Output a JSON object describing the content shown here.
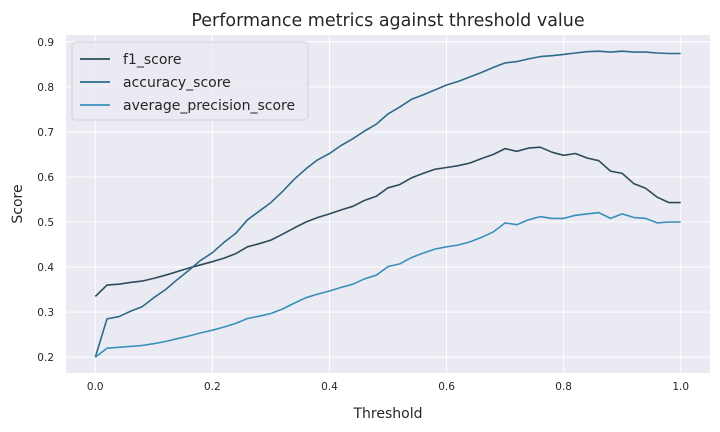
{
  "chart_data": {
    "type": "line",
    "title": "Performance metrics against threshold value",
    "xlabel": "Threshold",
    "ylabel": "Score",
    "xlim": [
      -0.05,
      1.05
    ],
    "ylim": [
      0.165,
      0.915
    ],
    "xticks": [
      "0.0",
      "0.2",
      "0.4",
      "0.6",
      "0.8",
      "1.0"
    ],
    "yticks": [
      "0.2",
      "0.3",
      "0.4",
      "0.5",
      "0.6",
      "0.7",
      "0.8",
      "0.9"
    ],
    "grid": true,
    "legend_position": "top-left",
    "colors": {
      "background": "#eaeaf2",
      "grid": "#ffffff",
      "f1_score": "#2f4b5a",
      "accuracy_score": "#2e6b88",
      "average_precision_score": "#3a8fbb"
    },
    "x": [
      0.0,
      0.02,
      0.04,
      0.06,
      0.08,
      0.1,
      0.12,
      0.14,
      0.16,
      0.18,
      0.2,
      0.22,
      0.24,
      0.26,
      0.28,
      0.3,
      0.32,
      0.34,
      0.36,
      0.38,
      0.4,
      0.42,
      0.44,
      0.46,
      0.48,
      0.5,
      0.52,
      0.54,
      0.56,
      0.58,
      0.6,
      0.62,
      0.64,
      0.66,
      0.68,
      0.7,
      0.72,
      0.74,
      0.76,
      0.78,
      0.8,
      0.82,
      0.84,
      0.86,
      0.88,
      0.9,
      0.92,
      0.94,
      0.96,
      0.98,
      1.0
    ],
    "series": [
      {
        "name": "f1_score",
        "values": [
          0.335,
          0.36,
          0.362,
          0.366,
          0.369,
          0.375,
          0.382,
          0.39,
          0.398,
          0.405,
          0.412,
          0.42,
          0.43,
          0.445,
          0.452,
          0.46,
          0.473,
          0.487,
          0.5,
          0.51,
          0.518,
          0.527,
          0.535,
          0.548,
          0.557,
          0.576,
          0.583,
          0.598,
          0.608,
          0.617,
          0.621,
          0.625,
          0.631,
          0.641,
          0.65,
          0.663,
          0.657,
          0.664,
          0.666,
          0.655,
          0.648,
          0.652,
          0.642,
          0.636,
          0.613,
          0.608,
          0.585,
          0.575,
          0.555,
          0.543,
          0.543
        ]
      },
      {
        "name": "accuracy_score",
        "values": [
          0.2,
          0.285,
          0.29,
          0.302,
          0.312,
          0.332,
          0.35,
          0.372,
          0.393,
          0.415,
          0.432,
          0.455,
          0.475,
          0.505,
          0.524,
          0.543,
          0.568,
          0.595,
          0.618,
          0.638,
          0.652,
          0.67,
          0.685,
          0.702,
          0.717,
          0.74,
          0.755,
          0.772,
          0.782,
          0.793,
          0.804,
          0.812,
          0.822,
          0.832,
          0.843,
          0.853,
          0.856,
          0.862,
          0.867,
          0.869,
          0.872,
          0.875,
          0.878,
          0.879,
          0.877,
          0.879,
          0.877,
          0.877,
          0.875,
          0.874,
          0.874
        ]
      },
      {
        "name": "average_precision_score",
        "values": [
          0.2,
          0.22,
          0.222,
          0.224,
          0.226,
          0.23,
          0.235,
          0.241,
          0.247,
          0.254,
          0.26,
          0.267,
          0.275,
          0.286,
          0.291,
          0.297,
          0.307,
          0.32,
          0.332,
          0.34,
          0.347,
          0.355,
          0.362,
          0.374,
          0.382,
          0.401,
          0.407,
          0.421,
          0.431,
          0.44,
          0.445,
          0.449,
          0.456,
          0.466,
          0.478,
          0.498,
          0.494,
          0.505,
          0.512,
          0.508,
          0.508,
          0.515,
          0.518,
          0.521,
          0.508,
          0.518,
          0.51,
          0.508,
          0.498,
          0.5,
          0.5
        ]
      }
    ]
  }
}
